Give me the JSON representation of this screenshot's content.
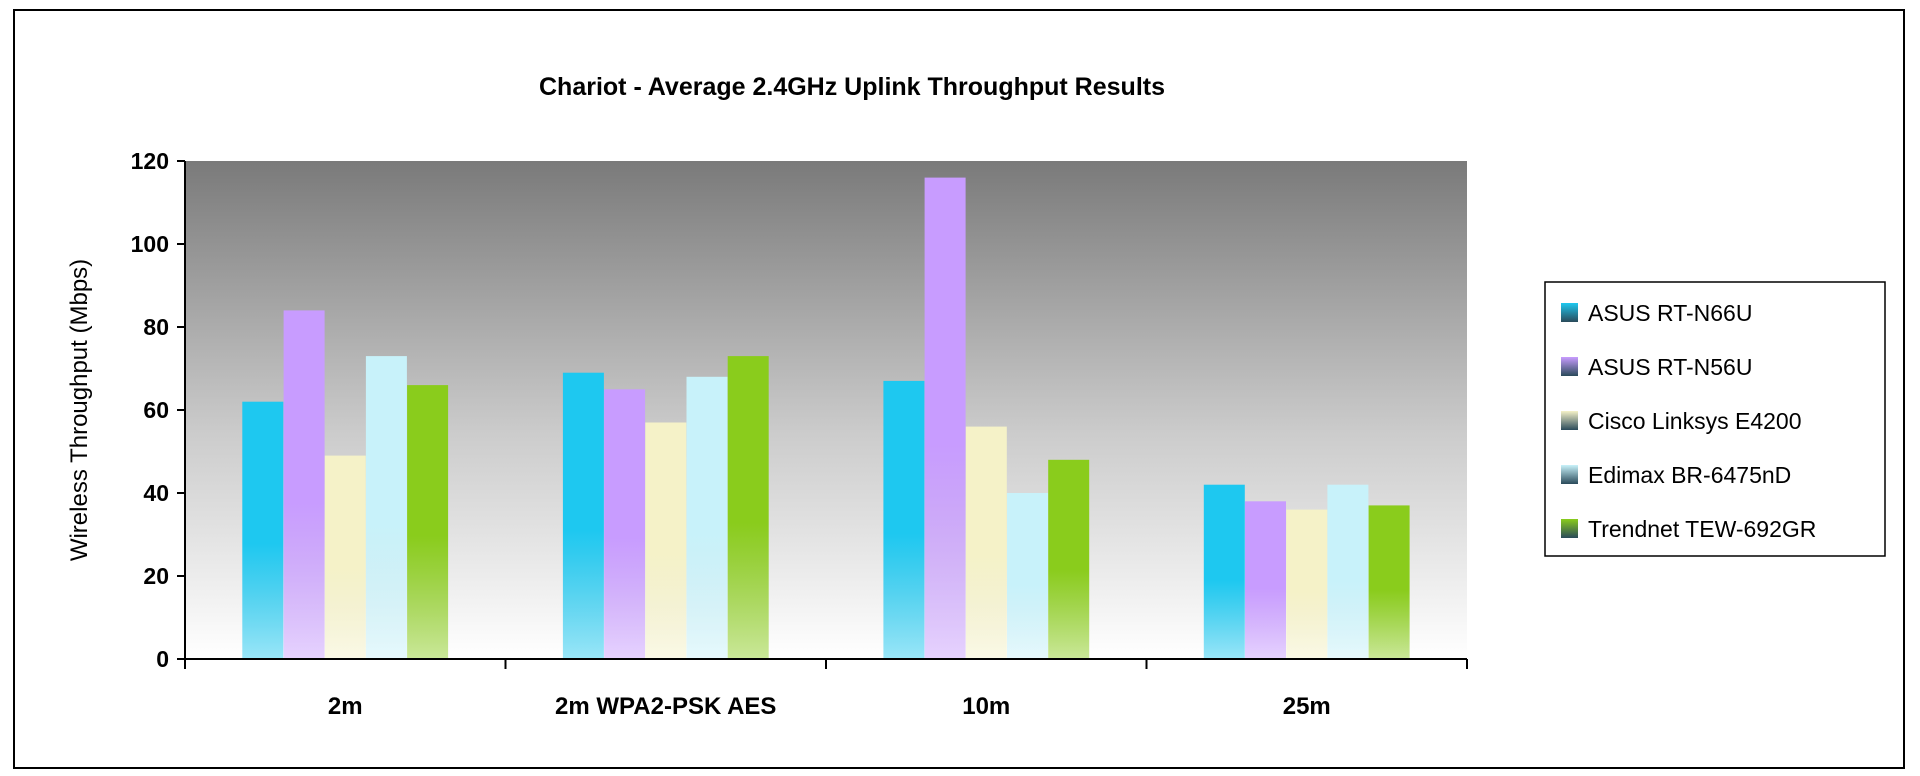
{
  "chart_data": {
    "type": "bar",
    "title": "Chariot - Average 2.4GHz Uplink Throughput Results",
    "xlabel": "",
    "ylabel": "Wireless Throughput (Mbps)",
    "ylim": [
      0,
      120
    ],
    "yticks": [
      0,
      20,
      40,
      60,
      80,
      100,
      120
    ],
    "grid": false,
    "legend_position": "right",
    "categories": [
      "2m",
      "2m WPA2-PSK AES",
      "10m",
      "25m"
    ],
    "series": [
      {
        "name": "ASUS RT-N66U",
        "color": "#1EC8F0",
        "values": [
          62,
          69,
          67,
          42
        ]
      },
      {
        "name": "ASUS RT-N56U",
        "color": "#C89CFF",
        "values": [
          84,
          65,
          116,
          38
        ]
      },
      {
        "name": "Cisco Linksys E4200",
        "color": "#F5F2C8",
        "values": [
          49,
          57,
          56,
          36
        ]
      },
      {
        "name": "Edimax BR-6475nD",
        "color": "#C8F2FA",
        "values": [
          73,
          68,
          40,
          42
        ]
      },
      {
        "name": "Trendnet TEW-692GR",
        "color": "#8ACC1C",
        "values": [
          66,
          73,
          48,
          37
        ]
      }
    ]
  }
}
